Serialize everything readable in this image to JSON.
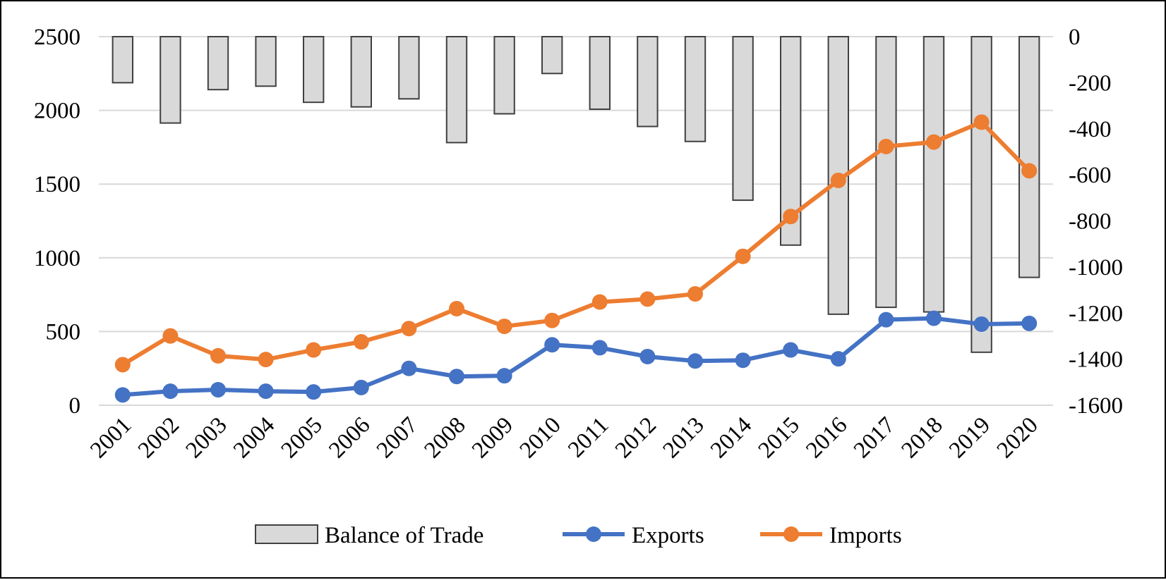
{
  "chart_data": {
    "type": "bar",
    "title": "",
    "xlabel": "",
    "ylabel": "",
    "categories": [
      "2001",
      "2002",
      "2003",
      "2004",
      "2005",
      "2006",
      "2007",
      "2008",
      "2009",
      "2010",
      "2011",
      "2012",
      "2013",
      "2014",
      "2015",
      "2016",
      "2017",
      "2018",
      "2019",
      "2020"
    ],
    "y_left": {
      "range": [
        0,
        2500
      ],
      "ticks": [
        0,
        500,
        1000,
        1500,
        2000,
        2500
      ]
    },
    "y_right": {
      "range": [
        -1600,
        0
      ],
      "ticks": [
        0,
        -200,
        -400,
        -600,
        -800,
        -1000,
        -1200,
        -1400,
        -1600
      ]
    },
    "grid": true,
    "legend_position": "bottom",
    "series": [
      {
        "name": "Balance of Trade",
        "type": "bar",
        "axis": "right",
        "color": "#d9d9d9",
        "edge_color": "#404040",
        "values": [
          -200,
          -375,
          -230,
          -215,
          -285,
          -305,
          -270,
          -460,
          -335,
          -160,
          -315,
          -390,
          -455,
          -710,
          -905,
          -1205,
          -1175,
          -1195,
          -1370,
          -1045
        ]
      },
      {
        "name": "Exports",
        "type": "line",
        "axis": "left",
        "color": "#4472c4",
        "values": [
          70,
          95,
          105,
          95,
          90,
          120,
          250,
          195,
          200,
          410,
          390,
          330,
          300,
          305,
          375,
          315,
          580,
          590,
          550,
          555
        ]
      },
      {
        "name": "Imports",
        "type": "line",
        "axis": "left",
        "color": "#ed7d31",
        "values": [
          275,
          470,
          335,
          310,
          375,
          430,
          520,
          655,
          535,
          575,
          700,
          720,
          755,
          1010,
          1280,
          1525,
          1755,
          1785,
          1920,
          1590
        ]
      }
    ]
  }
}
